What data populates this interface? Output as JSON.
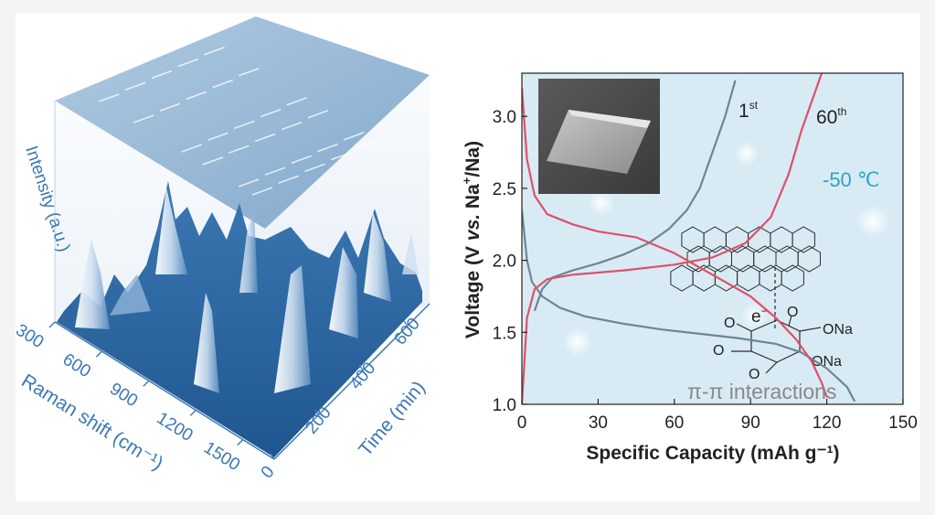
{
  "colors": {
    "frame_background": "#f4f4f4",
    "panel_background": "#ffffff",
    "plot_background": "#d8ebf5",
    "surface_blue": "#2d6aa6",
    "axis_blue": "#3b78b4",
    "first_cycle": "#6e8594",
    "sixtieth_cycle": "#e05068",
    "temperature_text": "#2aa5c0",
    "annotation_gray": "#888888"
  },
  "chart_data": [
    {
      "type": "surface3d",
      "title": "",
      "z_axis": {
        "label": "Intensity (a.u.)"
      },
      "x_axis": {
        "label": "Raman shift (cm⁻¹)",
        "ticks": [
          300,
          600,
          900,
          1200,
          1500
        ]
      },
      "y_axis": {
        "label": "Time (min)",
        "ticks": [
          0,
          200,
          400,
          600
        ]
      },
      "peak_bands_raman_shift": [
        430,
        660,
        980,
        1120,
        1360,
        1450
      ]
    },
    {
      "type": "line",
      "title": "",
      "xlabel": "Specific Capacity (mAh g⁻¹)",
      "ylabel_parts": {
        "a": "Voltage (V ",
        "vs": "vs.",
        "b": " Na",
        "sup": "+",
        "c": "/Na)"
      },
      "xlim": [
        0,
        150
      ],
      "ylim": [
        1.0,
        3.3
      ],
      "xticks": [
        0,
        30,
        60,
        90,
        120,
        150
      ],
      "yticks": [
        1.0,
        1.5,
        2.0,
        2.5,
        3.0
      ],
      "series": [
        {
          "name": "1st",
          "label_base": "1",
          "label_sup": "st",
          "charge": [
            [
              5,
              1.65
            ],
            [
              8,
              1.8
            ],
            [
              12,
              1.88
            ],
            [
              20,
              1.93
            ],
            [
              30,
              1.98
            ],
            [
              40,
              2.04
            ],
            [
              50,
              2.12
            ],
            [
              58,
              2.22
            ],
            [
              65,
              2.35
            ],
            [
              70,
              2.5
            ],
            [
              75,
              2.75
            ],
            [
              80,
              3.0
            ],
            [
              84,
              3.25
            ]
          ],
          "discharge": [
            [
              0,
              2.35
            ],
            [
              2,
              2.0
            ],
            [
              4,
              1.85
            ],
            [
              8,
              1.75
            ],
            [
              15,
              1.67
            ],
            [
              25,
              1.61
            ],
            [
              40,
              1.56
            ],
            [
              55,
              1.52
            ],
            [
              70,
              1.49
            ],
            [
              85,
              1.46
            ],
            [
              100,
              1.42
            ],
            [
              110,
              1.36
            ],
            [
              120,
              1.25
            ],
            [
              128,
              1.12
            ],
            [
              131,
              1.02
            ]
          ]
        },
        {
          "name": "60th",
          "label_base": "60",
          "label_sup": "th",
          "charge": [
            [
              0,
              1.0
            ],
            [
              2,
              1.6
            ],
            [
              5,
              1.8
            ],
            [
              10,
              1.87
            ],
            [
              20,
              1.9
            ],
            [
              40,
              1.93
            ],
            [
              60,
              1.97
            ],
            [
              75,
              2.02
            ],
            [
              88,
              2.12
            ],
            [
              98,
              2.3
            ],
            [
              105,
              2.6
            ],
            [
              110,
              2.9
            ],
            [
              114,
              3.1
            ],
            [
              118,
              3.3
            ]
          ],
          "discharge": [
            [
              0,
              3.2
            ],
            [
              2,
              2.7
            ],
            [
              5,
              2.45
            ],
            [
              10,
              2.32
            ],
            [
              20,
              2.25
            ],
            [
              30,
              2.2
            ],
            [
              45,
              2.16
            ],
            [
              60,
              2.05
            ],
            [
              70,
              1.95
            ],
            [
              80,
              1.85
            ],
            [
              90,
              1.75
            ],
            [
              100,
              1.6
            ],
            [
              108,
              1.45
            ],
            [
              114,
              1.3
            ],
            [
              118,
              1.15
            ],
            [
              120,
              1.05
            ]
          ]
        }
      ],
      "annotations": {
        "temperature": "-50 ℃",
        "interaction": "π-π  interactions",
        "electron_base": "e",
        "electron_sup": "−",
        "ona_1": "ONa",
        "ona_2": "ONa",
        "oxygen": "O"
      },
      "inset": "crystal micrograph"
    }
  ]
}
